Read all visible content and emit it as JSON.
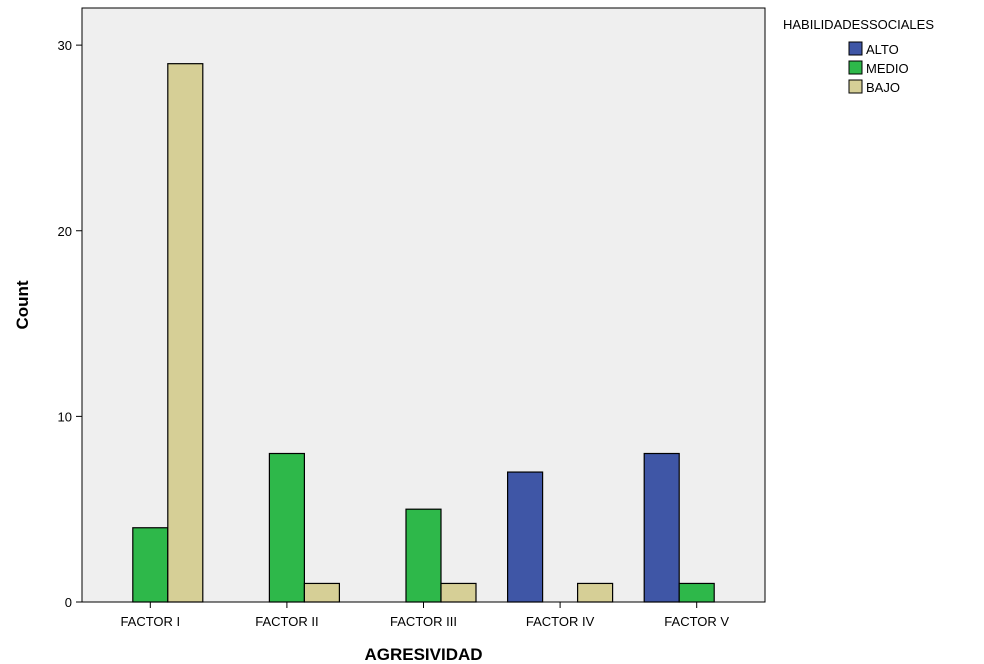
{
  "chart_data": {
    "type": "bar",
    "xlabel": "AGRESIVIDAD",
    "ylabel": "Count",
    "ylim": [
      0,
      32
    ],
    "yticks": [
      0,
      10,
      20,
      30
    ],
    "grid": false,
    "legend_position": "top-right",
    "legend_title": "HABILIDADESSOCIALES",
    "categories": [
      "FACTOR I",
      "FACTOR II",
      "FACTOR III",
      "FACTOR IV",
      "FACTOR V"
    ],
    "series": [
      {
        "name": "ALTO",
        "color": "#3f56a6",
        "values": [
          0,
          0,
          0,
          7,
          8
        ]
      },
      {
        "name": "MEDIO",
        "color": "#2eb84a",
        "values": [
          4,
          8,
          5,
          0,
          1
        ]
      },
      {
        "name": "BAJO",
        "color": "#d6cf96",
        "values": [
          29,
          1,
          1,
          1,
          0
        ]
      }
    ],
    "plot_background": "#efefef"
  }
}
